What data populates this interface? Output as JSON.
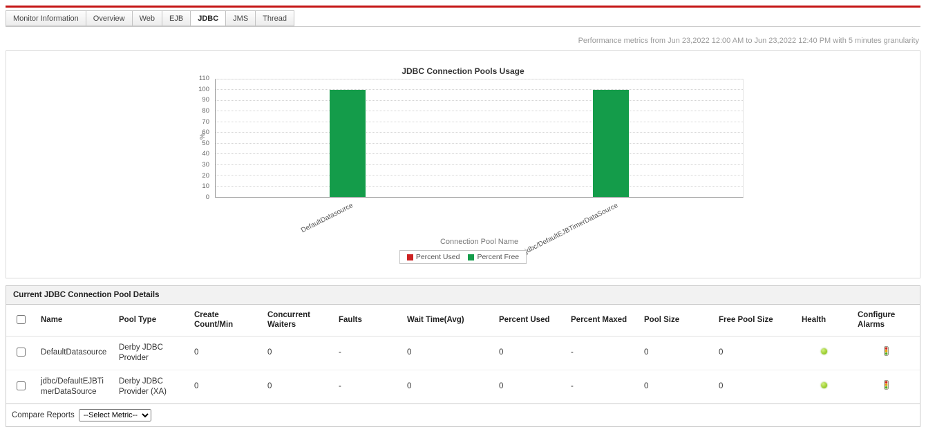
{
  "page": {
    "metrics_note": "Performance metrics from Jun 23,2022 12:00 AM to Jun 23,2022 12:40 PM with 5 minutes granularity"
  },
  "tabs": [
    {
      "label": "Monitor Information",
      "active": false
    },
    {
      "label": "Overview",
      "active": false
    },
    {
      "label": "Web",
      "active": false
    },
    {
      "label": "EJB",
      "active": false
    },
    {
      "label": "JDBC",
      "active": true
    },
    {
      "label": "JMS",
      "active": false
    },
    {
      "label": "Thread",
      "active": false
    }
  ],
  "chart_data": {
    "type": "bar",
    "title": "JDBC Connection Pools Usage",
    "xlabel": "Connection Pool Name",
    "ylabel": "%",
    "ylim": [
      0,
      110
    ],
    "ytick_step": 10,
    "grid": true,
    "legend_position": "bottom",
    "categories": [
      "DefaultDatasource",
      "jdbc/DefaultEJBTimerDataSource"
    ],
    "series": [
      {
        "name": "Percent Used",
        "color": "#cc2222",
        "values": [
          0,
          0
        ]
      },
      {
        "name": "Percent Free",
        "color": "#149c4a",
        "values": [
          100,
          100
        ]
      }
    ]
  },
  "pool_table": {
    "title": "Current JDBC Connection Pool Details",
    "columns": [
      "Name",
      "Pool Type",
      "Create Count/Min",
      "Concurrent Waiters",
      "Faults",
      "Wait Time(Avg)",
      "Percent Used",
      "Percent Maxed",
      "Pool Size",
      "Free Pool Size",
      "Health",
      "Configure Alarms"
    ],
    "rows": [
      {
        "cells": [
          "DefaultDatasource",
          "Derby JDBC Provider",
          "0",
          "0",
          "-",
          "0",
          "0",
          "-",
          "0",
          "0"
        ],
        "health": "green"
      },
      {
        "cells": [
          "jdbc/DefaultEJBTimerDataSource",
          "Derby JDBC Provider (XA)",
          "0",
          "0",
          "-",
          "0",
          "0",
          "-",
          "0",
          "0"
        ],
        "health": "green"
      }
    ]
  },
  "footer": {
    "compare_label": "Compare Reports",
    "metric_select": {
      "selected": "--Select Metric--",
      "options": [
        "--Select Metric--"
      ]
    }
  },
  "colors": {
    "accent_red": "#c41414",
    "bar_green": "#149c4a",
    "legend_red": "#cc2222",
    "health_green": "#7ab800"
  }
}
